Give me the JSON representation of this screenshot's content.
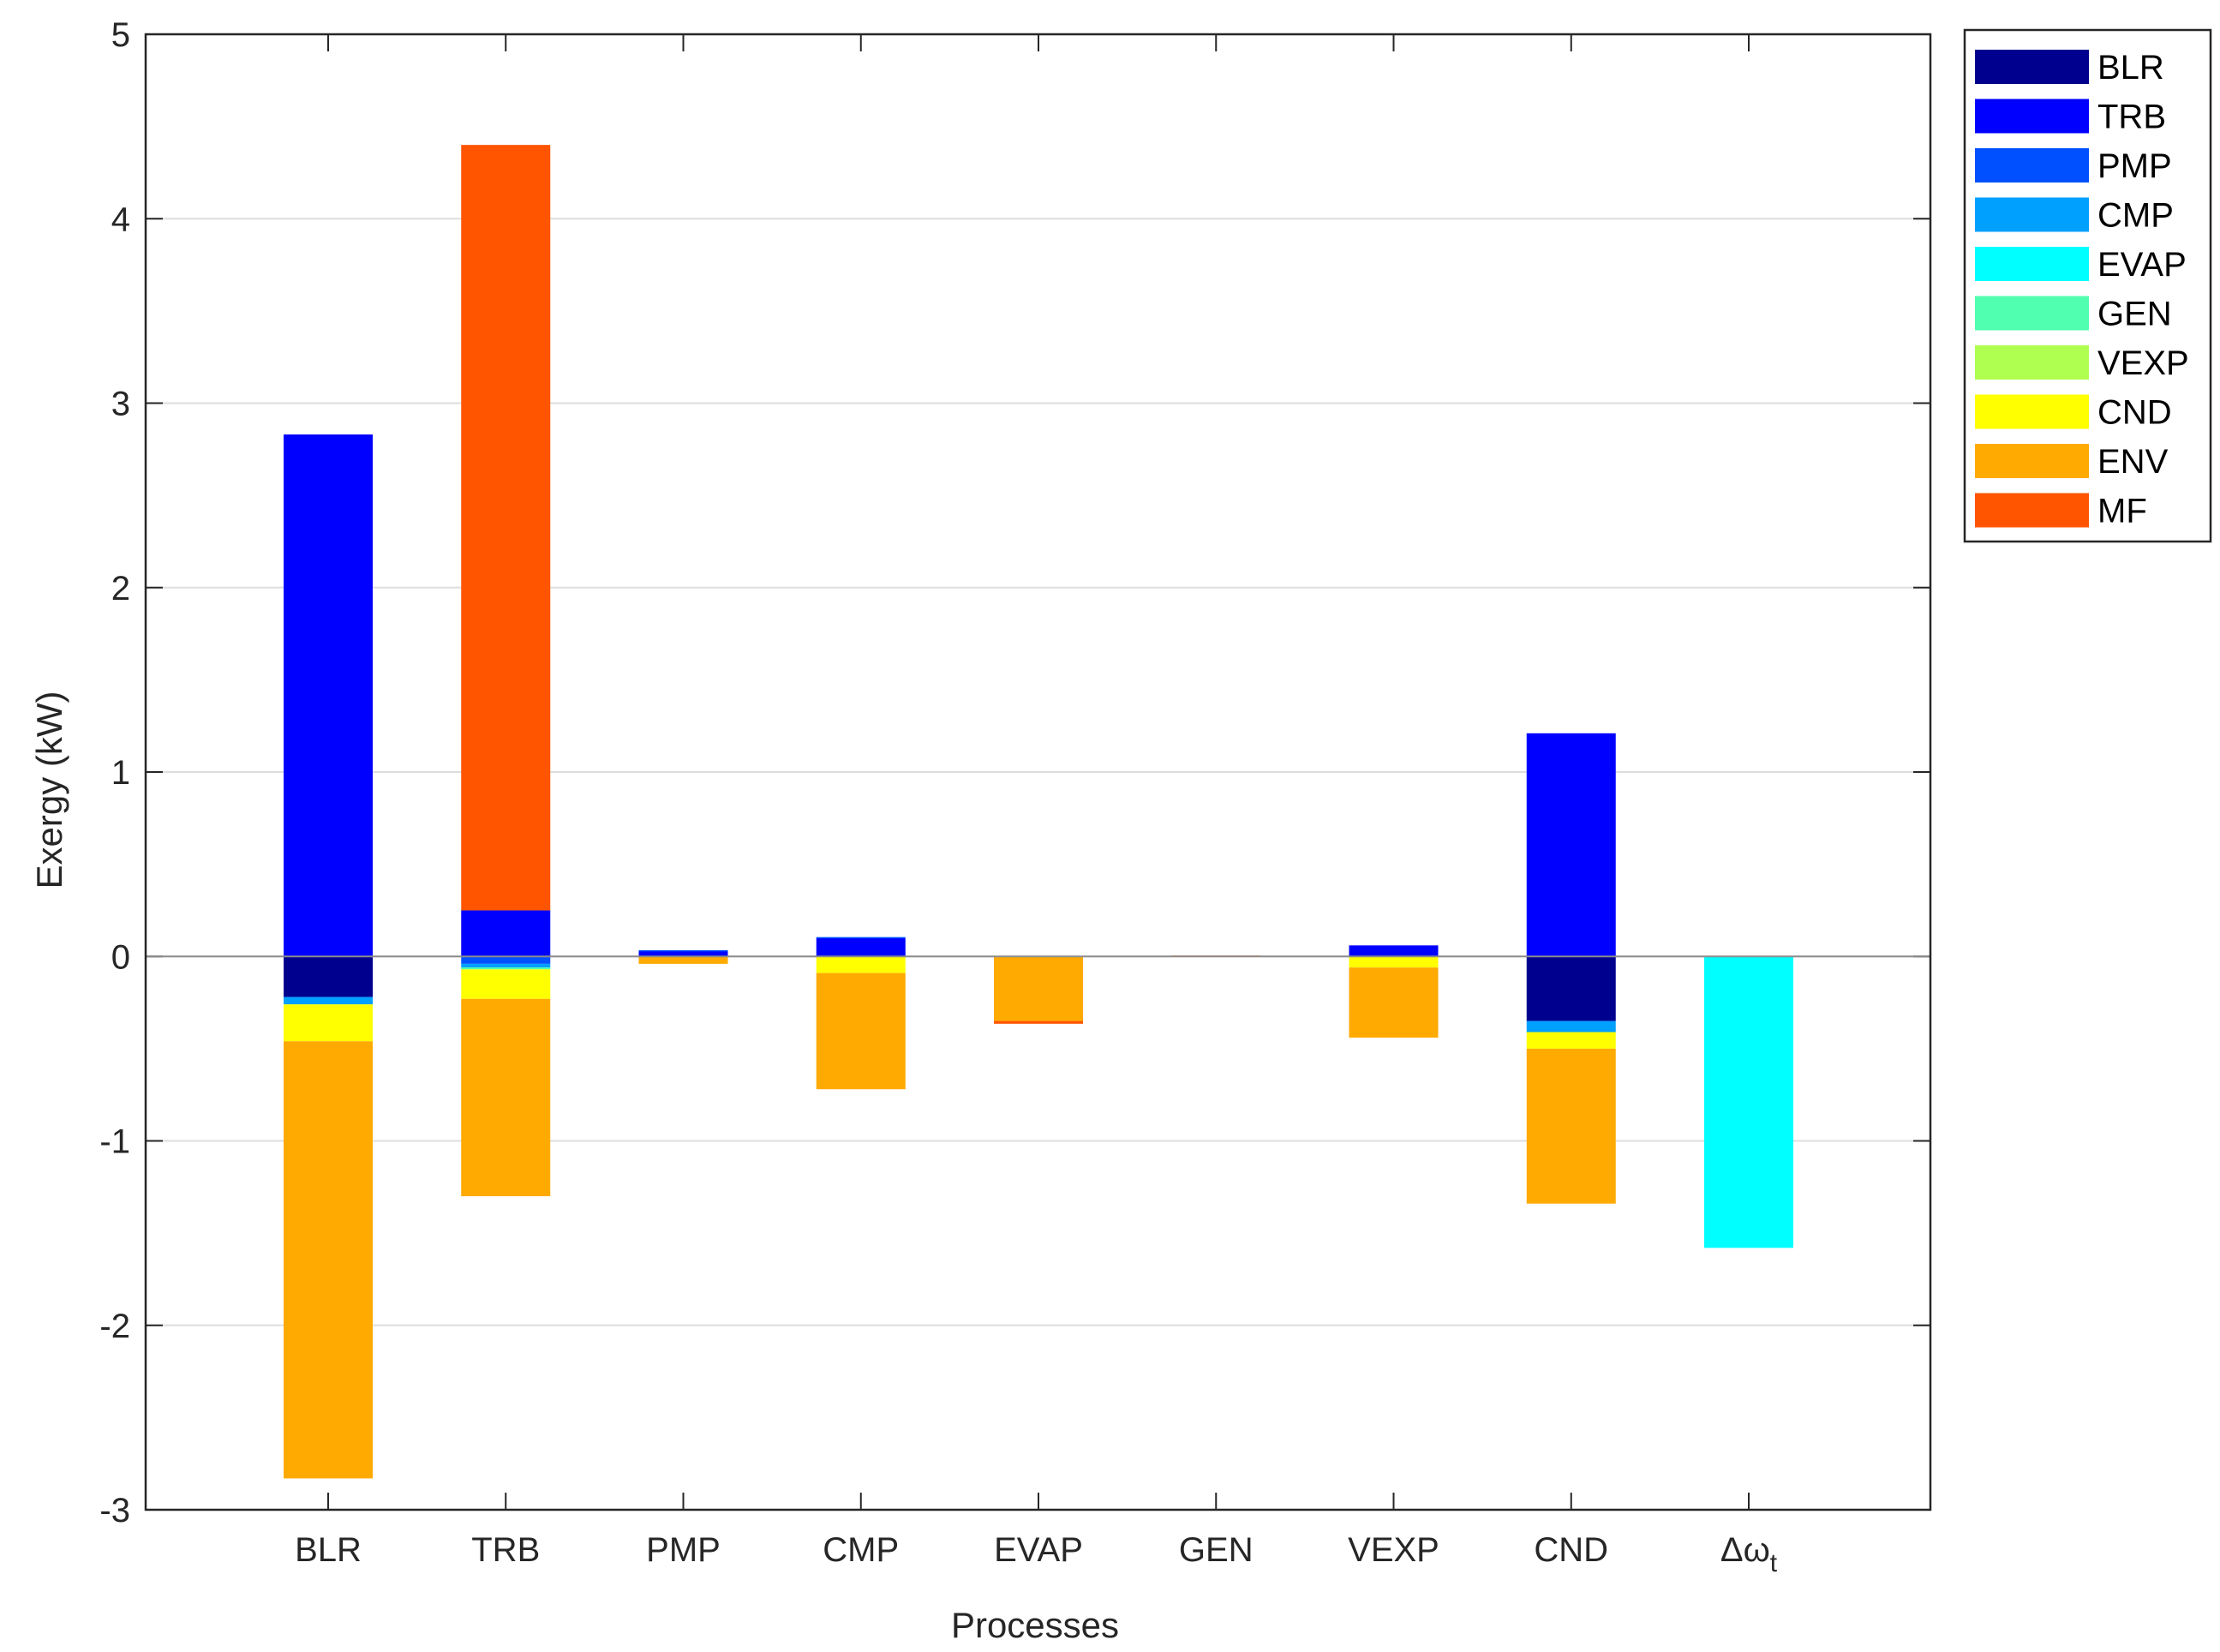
{
  "chart_data": {
    "type": "stacked-bar",
    "title": "",
    "xlabel": "Processes",
    "ylabel": "Exergy (kW)",
    "ylim": [
      -3,
      5
    ],
    "yticks": [
      -3,
      -2,
      -1,
      0,
      1,
      2,
      3,
      4,
      5
    ],
    "grid": "horizontal",
    "legend_position": "outside-top-right",
    "categories": [
      "BLR",
      "TRB",
      "PMP",
      "CMP",
      "EVAP",
      "GEN",
      "VEXP",
      "CND",
      "Δω"
    ],
    "last_category_subscript": "t",
    "series": [
      {
        "name": "BLR",
        "color": "#00008f",
        "values": [
          -0.22,
          0,
          0,
          0,
          0,
          0,
          0,
          -0.35,
          0
        ]
      },
      {
        "name": "TRB",
        "color": "#0000ff",
        "values": [
          2.83,
          0.25,
          0.03,
          0.1,
          0,
          0,
          0.06,
          1.21,
          0
        ]
      },
      {
        "name": "PMP",
        "color": "#0050ff",
        "values": [
          0,
          -0.04,
          0.004,
          0.005,
          0,
          0,
          0,
          0,
          0
        ]
      },
      {
        "name": "CMP",
        "color": "#00a0ff",
        "values": [
          -0.04,
          -0.02,
          0,
          0,
          0,
          0,
          0,
          -0.06,
          0
        ]
      },
      {
        "name": "EVAP",
        "color": "#00ffff",
        "values": [
          0,
          0,
          0,
          0,
          0,
          0,
          0,
          0,
          -1.58
        ]
      },
      {
        "name": "GEN",
        "color": "#50ffaf",
        "values": [
          0,
          -0.01,
          0,
          0,
          0,
          0,
          0,
          0,
          0
        ]
      },
      {
        "name": "VEXP",
        "color": "#afff50",
        "values": [
          0,
          0,
          0,
          0,
          0,
          0,
          0,
          0,
          0
        ]
      },
      {
        "name": "CND",
        "color": "#ffff00",
        "values": [
          -0.2,
          -0.16,
          0,
          -0.09,
          0,
          0,
          -0.06,
          -0.09,
          0
        ]
      },
      {
        "name": "ENV",
        "color": "#ffaa00",
        "values": [
          -2.37,
          -1.07,
          -0.04,
          -0.63,
          -0.35,
          0,
          -0.38,
          -0.84,
          0
        ]
      },
      {
        "name": "MF",
        "color": "#ff5500",
        "values": [
          0,
          4.15,
          0,
          0,
          -0.015,
          0.005,
          0,
          0,
          0
        ]
      }
    ]
  }
}
